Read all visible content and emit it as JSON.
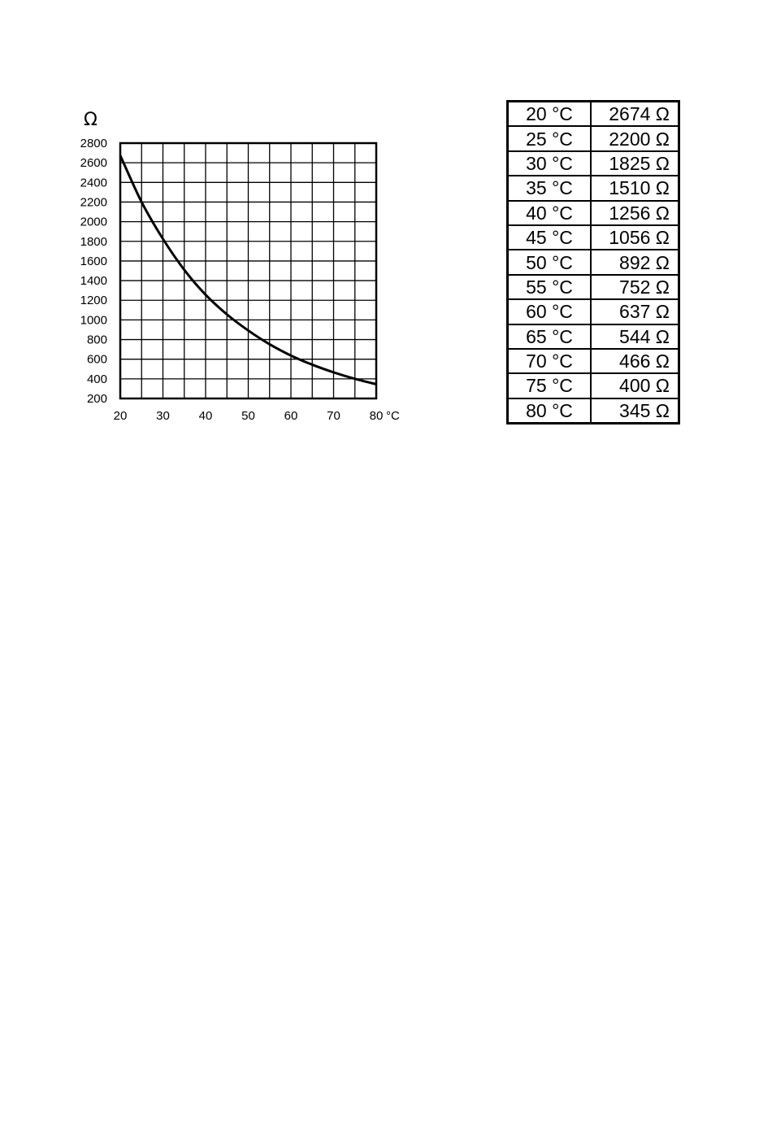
{
  "chart_data": {
    "type": "line",
    "ylabel": "Ω",
    "xunit": "°C",
    "xlim": [
      20,
      80
    ],
    "ylim": [
      200,
      2800
    ],
    "xticks": [
      "20",
      "30",
      "40",
      "50",
      "60",
      "70",
      "80"
    ],
    "yticks": [
      "2800",
      "2600",
      "2400",
      "2200",
      "2000",
      "1800",
      "1600",
      "1400",
      "1200",
      "1000",
      "800",
      "600",
      "400",
      "200"
    ],
    "grid": true,
    "series": [
      {
        "x": [
          20,
          25,
          30,
          35,
          40,
          45,
          50,
          55,
          60,
          65,
          70,
          75,
          80
        ],
        "y": [
          2674,
          2200,
          1825,
          1510,
          1256,
          1056,
          892,
          752,
          637,
          544,
          466,
          400,
          345
        ]
      }
    ]
  },
  "table": {
    "rows": [
      {
        "temp": "20 °C",
        "res": "2674 Ω"
      },
      {
        "temp": "25 °C",
        "res": "2200 Ω"
      },
      {
        "temp": "30 °C",
        "res": "1825 Ω"
      },
      {
        "temp": "35 °C",
        "res": "1510 Ω"
      },
      {
        "temp": "40 °C",
        "res": "1256 Ω"
      },
      {
        "temp": "45 °C",
        "res": "1056 Ω"
      },
      {
        "temp": "50 °C",
        "res": "892 Ω"
      },
      {
        "temp": "55 °C",
        "res": "752 Ω"
      },
      {
        "temp": "60 °C",
        "res": "637 Ω"
      },
      {
        "temp": "65 °C",
        "res": "544 Ω"
      },
      {
        "temp": "70 °C",
        "res": "466 Ω"
      },
      {
        "temp": "75 °C",
        "res": "400 Ω"
      },
      {
        "temp": "80 °C",
        "res": "345 Ω"
      }
    ]
  }
}
